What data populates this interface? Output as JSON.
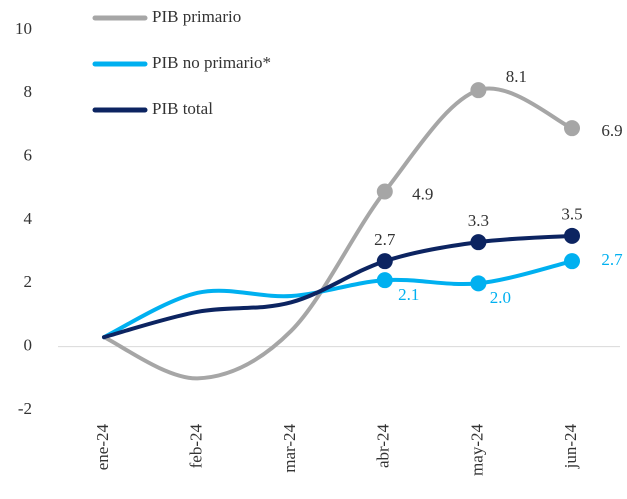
{
  "chart_data": {
    "type": "line",
    "categories": [
      "ene-24",
      "feb-24",
      "mar-24",
      "abr-24",
      "may-24",
      "jun-24"
    ],
    "series": [
      {
        "name": "PIB primario",
        "color": "#a6a6a6",
        "values": [
          0.3,
          -1.0,
          0.5,
          4.9,
          8.1,
          6.9
        ],
        "value_labels": [
          null,
          null,
          null,
          "4.9",
          "8.1",
          "6.9"
        ]
      },
      {
        "name": "PIB no primario*",
        "color": "#00b0f0",
        "values": [
          0.3,
          1.7,
          1.6,
          2.1,
          2.0,
          2.7
        ],
        "value_labels": [
          null,
          null,
          null,
          "2.1",
          "2.0",
          "2.7"
        ]
      },
      {
        "name": "PIB total",
        "color": "#0c2461",
        "values": [
          0.3,
          1.1,
          1.4,
          2.7,
          3.3,
          3.5
        ],
        "value_labels": [
          null,
          null,
          null,
          "2.7",
          "3.3",
          "3.5"
        ]
      }
    ],
    "ylim": [
      -2,
      10
    ],
    "yticks": [
      -2,
      0,
      2,
      4,
      6,
      8,
      10
    ],
    "legend": "top-left"
  }
}
